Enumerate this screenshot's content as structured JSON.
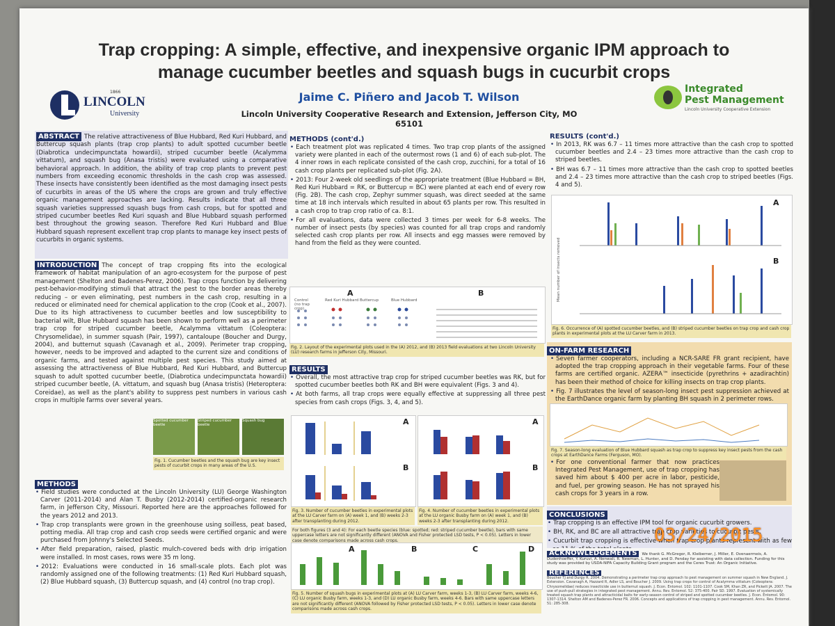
{
  "header": {
    "title_line1": "Trap cropping: A simple, effective, and inexpensive organic IPM approach to",
    "title_line2": "manage cucumber beetles and squash bugs in cucurbit crops",
    "authors": "Jaime C. Piñero and Jacob T. Wilson",
    "affiliation": "Lincoln University Cooperative Research and Extension, Jefferson City, MO 65101",
    "left_logo": {
      "name": "LINCOLN",
      "sub": "University",
      "year": "1866"
    },
    "right_logo": {
      "line1": "Integrated",
      "line2": "Pest Management",
      "sub": "Lincoln University Cooperative Extension"
    }
  },
  "abstract": {
    "heading": "ABSTRACT",
    "text": "The relative attractiveness of Blue Hubbard, Red Kuri Hubbard, and Buttercup squash plants (trap crop plants) to adult spotted cucumber beetle (Diabrotica undecimpunctata howardii), striped cucumber beetle (Acalymma vittatum), and squash bug (Anasa tristis) were evaluated using a comparative behavioral approach. In addition, the ability of trap crop plants to prevent pest numbers from exceeding economic thresholds in the cash crop was assessed. These insects have consistently been identified as the most damaging insect pests of cucurbits in areas of the US where the crops are grown and truly effective organic management approaches are lacking. Results indicate that all three squash varieties suppressed squash bugs from cash crops, but for spotted and striped cucumber beetles Red Kuri squash and Blue Hubbard squash performed best throughout the growing season. Therefore Red Kuri Hubbard and Blue Hubbard squash represent excellent trap crop plants to manage key insect pests of cucurbits in organic systems."
  },
  "introduction": {
    "heading": "INTRODUCTION",
    "text": "The concept of trap cropping fits into the ecological framework of habitat manipulation of an agro-ecosystem for the purpose of pest management (Shelton and Badenes-Perez, 2006). Trap crops function by delivering pest-behavior-modifying stimuli that attract the pest to the border areas thereby reducing – or even eliminating, pest numbers in the cash crop, resulting in a reduced or eliminated need for chemical application to the crop (Cook et al., 2007). Due to its high attractiveness to cucumber beetles and low susceptibility to bacterial wilt, Blue Hubbard squash has been shown to perform well as a perimeter trap crop for striped cucumber beetle, Acalymma vittatum (Coleoptera: Chrysomelidae), in summer squash (Pair, 1997), cantaloupe (Boucher and Durgy, 2004), and butternut squash (Cavanagh et al., 2009). Perimeter trap cropping, however, needs to be improved and adapted to the current size and conditions of organic farms, and tested against multiple pest species. This study aimed at assessing the attractiveness of Blue Hubbard, Red Kuri Hubbard, and Buttercup squash to adult spotted cucumber beetle, (Diabrotica undecimpunctata howardii) striped cucumber beetle, (A. vittatum, and squash bug (Anasa tristis) (Heteroptera: Coreidae), as well as the plant's ability to suppress pest numbers in various cash crops in multiple farms over several years.",
    "photo_labels": [
      "Spotted cucumber beetle",
      "Striped cucumber beetle",
      "Squash bug"
    ],
    "figure_caption": "Fig. 1. Cucumber beetles and the squash bug are key insect pests of cucurbit crops in many areas of the U.S."
  },
  "methods": {
    "heading": "METHODS",
    "bullets": [
      "Field studies were conducted at the Lincoln University (LU) George Washington Carver (2011-2014) and Alan T. Busby (2012-2014) certified-organic research farm, in Jefferson City, Missouri. Reported here are the approaches followed for the years 2012 and 2013.",
      "Trap crop transplants were grown in the greenhouse using soilless, peat based, potting media. All trap crop and cash crop seeds were certified organic and were purchased from Johnny's Selected Seeds.",
      "After field preparation, raised, plastic mulch-covered beds with drip irrigation were installed. In most cases, rows were 35 m long.",
      "2012: Evaluations were conducted in 16 small-scale plots. Each plot was randomly assigned one of the following treatments: (1) Red Kuri Hubbard squash, (2) Blue Hubbard squash, (3) Buttercup squash, and (4) control (no trap crop)."
    ]
  },
  "methods_contd": {
    "heading": "METHODS (cont'd.)",
    "bullets": [
      "Each treatment plot was replicated 4 times. Two trap crop plants of the assigned variety were planted in each of the outermost rows (1 and 6) of each sub-plot. The 4 inner rows in each replicate consisted of the cash crop, zucchini, for a total of 16 cash crop plants per replicated sub-plot (Fig. 2A).",
      "2013: Four 2-week old seedlings of the appropriate treatment (Blue Hubbard = BH, Red Kuri Hubbard = RK, or Buttercup = BC) were planted at each end of every row (Fig. 2B). The cash crop, Zephyr summer squash, was direct seeded at the same time at 18 inch intervals which resulted in about 65 plants per row. This resulted in a cash crop to trap crop ratio of ca. 8:1.",
      "For all evaluations, data were collected 3 times per week for 6-8 weeks. The number of insect pests (by species) was counted for all trap crops and randomly selected cash crop plants per row. All insects and egg masses were removed by hand from the field as they were counted."
    ],
    "fig2_panels": [
      "A",
      "B"
    ],
    "fig2_plot_labels": [
      "Control (no trap crop)",
      "Red Kuri Hubbard",
      "Buttercup",
      "Blue Hubbard"
    ],
    "fig2_caption": "Fig. 2. Layout of the experimental plots used in the (A) 2012, and (B) 2013 field evaluations at two Lincoln University (LU) research farms in Jefferson City, Missouri."
  },
  "results": {
    "heading": "RESULTS",
    "bullets": [
      "Overall, the most attractive trap crop for striped cucumber beetles was RK, but for spotted cucumber beetles both RK and BH were equivalent (Figs. 3 and 4).",
      "At both farms, all trap crops were equally effective at suppressing all three pest species from cash crops (Figs. 3, 4, and 5)."
    ],
    "fig3_caption": "Fig. 3. Number of cucumber beetles in experimental plots at the LU Carver farm on (A) week 1, and (B) weeks 2-3 after transplanting during 2012.",
    "fig4_caption": "Fig. 4. Number of cucumber beetles in experimental plots at the LU organic Busby farm on (A) week 1, and (B) weeks 2-3 after transplanting during 2012.",
    "footnote": "For both figures (3 and 4): For each beetle species (blue: spotted; red: striped cucumber beetle), bars with same uppercase letters are not significantly different (ANOVA and Fisher protected LSD tests, P < 0.05). Letters in lower case denote comparisons made across cash crops.",
    "panel_labels": [
      "A",
      "B",
      "C",
      "D"
    ],
    "fig5_caption": "Fig. 5. Number of squash bugs in experimental plots at (A) LU Carver farm, weeks 1-3, (B) LU Carver farm, weeks 4-6, (C) LU organic Busby farm, weeks 1-3, and (D) LU organic Busby farm, weeks 4-6. Bars with same uppercase letters are not significantly different (ANOVA followed by Fisher protected LSD tests, P < 0.05). Letters in lower case denote comparisons made across cash crops."
  },
  "results_contd": {
    "heading": "RESULTS (cont'd.)",
    "bullets": [
      "In 2013, RK was 6.7 – 11 times more attractive than the cash crop to spotted cucumber beetles and 2.4 – 23 times more attractive than the cash crop to striped beetles.",
      "BH was 6.7 – 11 times more attractive than the cash crop to spotted beetles and 2.4 – 23 times more attractive than the cash crop to striped beetles (Figs. 4 and 5)."
    ],
    "panel_labels": [
      "A",
      "B"
    ],
    "y_label": "Mean number of insects removed",
    "fig6_caption": "Fig. 6. Occurrence of (A) spotted cucumber beetles, and (B) striped cucumber beetles on trap crop and cash crop plants in experimental plots at the LU Carver farm in 2013."
  },
  "on_farm": {
    "heading": "ON-FARM RESEARCH",
    "bullets": [
      "Seven farmer cooperators, including a NCR-SARE FR grant recipient, have adopted the trap cropping approach in their vegetable farms. Four of these farms are certified organic. AZERA™ insecticide (pyrethrins + azadirachtin) has been their method of choice for killing insects on trap crop plants.",
      "Fig. 7 illustrates the level of season-long insect pest suppression achieved at the EarthDance organic farm by planting BH squash in 2 perimeter rows."
    ],
    "fig7_caption": "Fig. 7. Season-long evaluation of Blue Hubbard squash as trap crop to suppress key insect pests from the cash crops at EarthDance Farms (Ferguson, MO).",
    "extra_bullet": "For one conventional farmer that now practices Integrated Pest Management, use of trap cropping has saved him about $ 400 per acre in labor, pesticide, and fuel, per growing season. He has not sprayed his cash crops for 3 years in a row."
  },
  "conclusions": {
    "heading": "CONCLUSIONS",
    "bullets": [
      "Trap cropping is an effective IPM tool for organic cucurbit growers.",
      "BH, RK, and BC are all attractive trap crop varieties to cucurbit pests.",
      "Cucurbit trap cropping is effective when trap crop plants represent with as few as 11 % of the total plants."
    ]
  },
  "acknowledgements": {
    "heading": "ACKNOWLEDGEMENTS",
    "text": "We thank G. McGregor, R. Kleiberner, J. Miller, E. Ovenaermeis, A. Dudenhoeffer, Y. Kuruvi, A. Nenwali, R. Newman, L. Hunter, and D. Penday for assisting with data collection. Funding for this study was provided by USDA-NIFA Capacity Building Grant program and the Ceres Trust: An Organic Initiative."
  },
  "references": {
    "heading": "REFERENCES",
    "text": "Boucher TJ and Durgy R. 2004. Demonstrating a perimeter trap crop approach to pest management on summer squash in New England. J. Extension. Cavanagh A, Hazzard R, Adler LS, and Boucher J. 2009. Using trap crops for control of Acalymma vittatum (Coleoptera: Chrysomelidae) reduces insecticide use in butternut squash. J. Econ. Entomol. 102: 1101-1107. Cook SM, Khan ZR, and Pickett JA. 2007. The use of push-pull strategies in integrated pest management. Annu. Rev. Entomol. 52: 375-400. Pair SD. 1997. Evaluation of systemically treated squash trap plants and attracticidal baits for early-season control of striped and spotted cucumber beetles. J. Econ. Entomol. 90: 1307-1314. Shelton AM and Badenes-Perez FR. 2006. Concepts and applications of trap cropping in pest management. Annu. Rev. Entomol. 51: 285-308."
  },
  "camera_date": "03/24/2015"
}
